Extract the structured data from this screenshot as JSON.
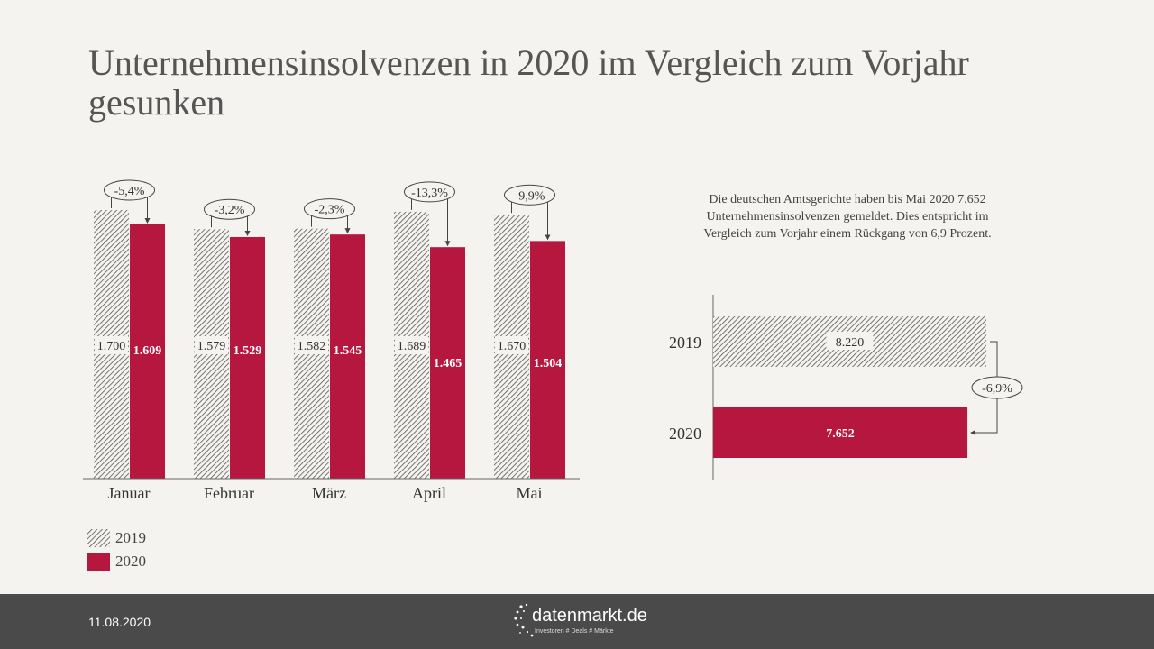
{
  "title": "Unternehmensinsolvenzen in 2020 im Vergleich zum Vorjahr gesunken",
  "side_text": "Die deutschen Amtsgerichte haben bis Mai 2020 7.652 Unternehmensinsolvenzen gemeldet. Dies entspricht im Vergleich zum Vorjahr einem Rückgang von 6,9 Prozent.",
  "legend": [
    {
      "label": "2019",
      "style": "hatched"
    },
    {
      "label": "2020",
      "style": "solid"
    }
  ],
  "colors": {
    "series_2020": "#b5173f",
    "hatch": "#555555",
    "background": "#f5f3ef",
    "footer": "#4a4a4a"
  },
  "footer": {
    "date": "11.08.2020",
    "logo_name": "datenmarkt.de",
    "logo_tagline": "Investoren # Deals # Märkte"
  },
  "chart_data": [
    {
      "type": "bar",
      "categories": [
        "Januar",
        "Februar",
        "März",
        "April",
        "Mai"
      ],
      "series": [
        {
          "name": "2019",
          "values": [
            1700,
            1579,
            1582,
            1689,
            1670
          ],
          "labels": [
            "1.700",
            "1.579",
            "1.582",
            "1.689",
            "1.670"
          ]
        },
        {
          "name": "2020",
          "values": [
            1609,
            1529,
            1545,
            1465,
            1504
          ],
          "labels": [
            "1.609",
            "1.529",
            "1.545",
            "1.465",
            "1.504"
          ]
        }
      ],
      "changes": [
        "-5,4%",
        "-3,2%",
        "-2,3%",
        "-13,3%",
        "-9,9%"
      ],
      "ylim": [
        0,
        1700
      ]
    },
    {
      "type": "bar",
      "orientation": "horizontal",
      "categories": [
        "2019",
        "2020"
      ],
      "values": [
        8220,
        7652
      ],
      "labels": [
        "8.220",
        "7.652"
      ],
      "change": "-6,9%",
      "xlim": [
        0,
        8220
      ]
    }
  ]
}
